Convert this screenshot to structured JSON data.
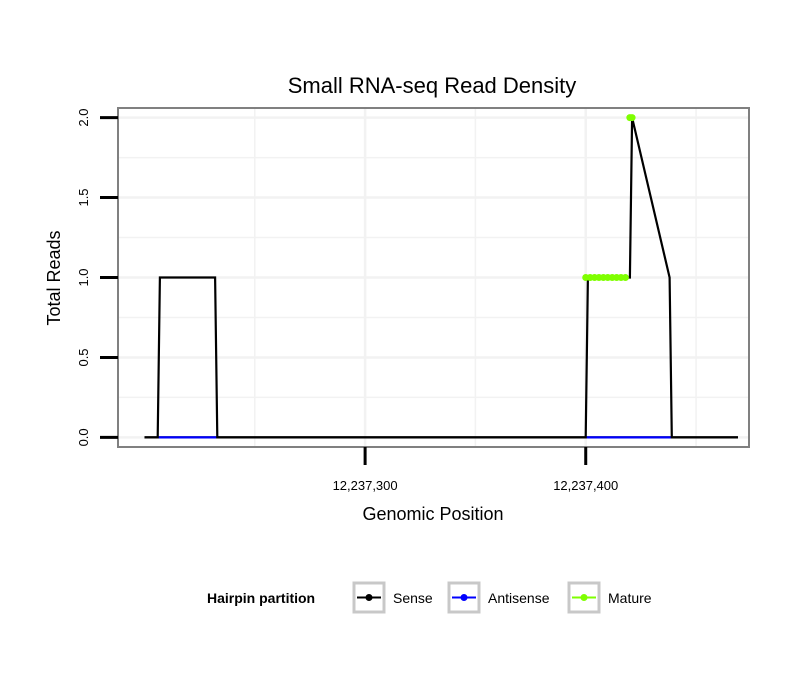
{
  "chart_data": {
    "type": "line",
    "title": "Small RNA-seq Read Density",
    "xlabel": "Genomic Position",
    "ylabel": "Total Reads",
    "xlim": [
      12237188,
      12237474
    ],
    "ylim": [
      -0.06,
      2.06
    ],
    "x_ticks": [
      {
        "value": 12237300,
        "label": "12,237,300"
      },
      {
        "value": 12237400,
        "label": "12,237,400"
      }
    ],
    "y_ticks": [
      {
        "value": 0.0,
        "label": "0.0"
      },
      {
        "value": 0.5,
        "label": "0.5"
      },
      {
        "value": 1.0,
        "label": "1.0"
      },
      {
        "value": 1.5,
        "label": "1.5"
      },
      {
        "value": 2.0,
        "label": "2.0"
      }
    ],
    "grid": true,
    "series": [
      {
        "name": "Sense",
        "color": "#000000",
        "x": [
          12237200,
          12237206,
          12237207,
          12237232,
          12237233,
          12237400,
          12237401,
          12237420,
          12237421,
          12237438,
          12237439,
          12237469
        ],
        "y": [
          0,
          0,
          1,
          1,
          0,
          0,
          1,
          1,
          2,
          1,
          0,
          0
        ]
      },
      {
        "name": "Antisense",
        "color": "#0000ff",
        "segments": [
          [
            12237206,
            12237234
          ],
          [
            12237400,
            12237439
          ]
        ],
        "y": 0
      },
      {
        "name": "Mature",
        "color": "#7fff00",
        "points": [
          {
            "x": 12237400,
            "y": 1
          },
          {
            "x": 12237402,
            "y": 1
          },
          {
            "x": 12237404,
            "y": 1
          },
          {
            "x": 12237406,
            "y": 1
          },
          {
            "x": 12237408,
            "y": 1
          },
          {
            "x": 12237410,
            "y": 1
          },
          {
            "x": 12237412,
            "y": 1
          },
          {
            "x": 12237414,
            "y": 1
          },
          {
            "x": 12237416,
            "y": 1
          },
          {
            "x": 12237418,
            "y": 1
          },
          {
            "x": 12237420,
            "y": 2
          },
          {
            "x": 12237421,
            "y": 2
          }
        ]
      }
    ],
    "legend": {
      "title": "Hairpin partition",
      "position": "bottom",
      "items": [
        "Sense",
        "Antisense",
        "Mature"
      ]
    }
  }
}
